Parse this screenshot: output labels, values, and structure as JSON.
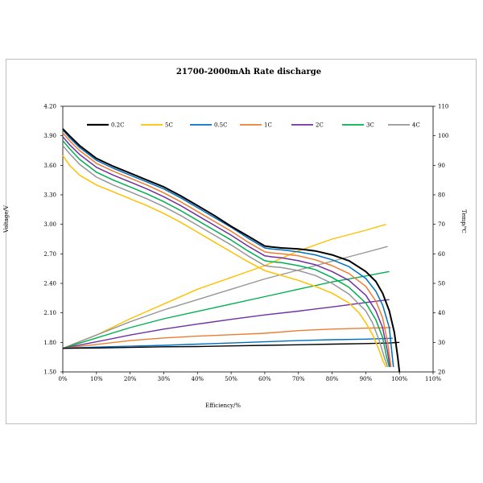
{
  "chart_data": {
    "type": "line",
    "title": "21700-2000mAh Rate discharge",
    "xlabel": "Efficiency/%",
    "ylabel_left": "Voltage/V",
    "ylabel_right": "Temp/℃",
    "xlim": [
      0,
      110
    ],
    "ylim_left": [
      1.5,
      4.2
    ],
    "ylim_right": [
      20,
      110
    ],
    "x_ticks": [
      "0%",
      "10%",
      "20%",
      "30%",
      "40%",
      "50%",
      "60%",
      "70%",
      "80%",
      "90%",
      "100%",
      "110%"
    ],
    "y_left_ticks": [
      "1.50",
      "1.80",
      "2.10",
      "2.40",
      "2.70",
      "3.00",
      "3.30",
      "3.60",
      "3.90",
      "4.20"
    ],
    "y_right_ticks": [
      "20",
      "30",
      "40",
      "50",
      "60",
      "70",
      "80",
      "90",
      "100",
      "110"
    ],
    "grid": false,
    "legend_position": "top",
    "legend": [
      {
        "label": "0.2C",
        "color": "#000000"
      },
      {
        "label": "5C",
        "color": "#ffc000"
      },
      {
        "label": "0.5C",
        "color": "#0070c0"
      },
      {
        "label": "1C",
        "color": "#ed7d31"
      },
      {
        "label": "2C",
        "color": "#7030a0"
      },
      {
        "label": "3C",
        "color": "#00b050"
      },
      {
        "label": "4C",
        "color": "#969696"
      }
    ],
    "voltage_series": [
      {
        "name": "0.2C",
        "color": "#000000",
        "x": [
          0,
          2,
          5,
          10,
          15,
          20,
          25,
          30,
          35,
          40,
          45,
          50,
          55,
          60,
          62,
          65,
          70,
          75,
          80,
          85,
          90,
          93,
          95,
          97,
          98.5,
          99.5,
          100
        ],
        "y": [
          3.97,
          3.9,
          3.8,
          3.67,
          3.59,
          3.52,
          3.45,
          3.38,
          3.29,
          3.19,
          3.09,
          2.98,
          2.88,
          2.78,
          2.77,
          2.76,
          2.75,
          2.73,
          2.69,
          2.63,
          2.52,
          2.42,
          2.3,
          2.12,
          1.9,
          1.65,
          1.5
        ]
      },
      {
        "name": "0.5C",
        "color": "#0070c0",
        "x": [
          0,
          2,
          5,
          10,
          15,
          20,
          25,
          30,
          35,
          40,
          45,
          50,
          55,
          60,
          62,
          65,
          70,
          75,
          80,
          85,
          90,
          93,
          95,
          97,
          98.2
        ],
        "y": [
          3.96,
          3.88,
          3.78,
          3.65,
          3.57,
          3.5,
          3.43,
          3.36,
          3.27,
          3.17,
          3.07,
          2.97,
          2.86,
          2.76,
          2.75,
          2.74,
          2.72,
          2.69,
          2.64,
          2.57,
          2.45,
          2.32,
          2.18,
          1.95,
          1.55
        ]
      },
      {
        "name": "1C",
        "color": "#ed7d31",
        "x": [
          0,
          2,
          5,
          10,
          15,
          20,
          25,
          30,
          35,
          40,
          45,
          50,
          55,
          60,
          62,
          65,
          70,
          75,
          80,
          85,
          90,
          93,
          95,
          96.5,
          97.5
        ],
        "y": [
          3.93,
          3.85,
          3.75,
          3.62,
          3.54,
          3.47,
          3.4,
          3.32,
          3.23,
          3.13,
          3.03,
          2.93,
          2.82,
          2.72,
          2.71,
          2.7,
          2.68,
          2.64,
          2.58,
          2.5,
          2.37,
          2.22,
          2.05,
          1.8,
          1.55
        ]
      },
      {
        "name": "2C",
        "color": "#7030a0",
        "x": [
          0,
          2,
          5,
          10,
          15,
          20,
          25,
          30,
          35,
          40,
          45,
          50,
          55,
          60,
          62,
          65,
          70,
          75,
          80,
          85,
          90,
          93,
          95,
          96.5,
          97.2
        ],
        "y": [
          3.89,
          3.81,
          3.71,
          3.58,
          3.5,
          3.43,
          3.36,
          3.28,
          3.19,
          3.09,
          2.99,
          2.89,
          2.78,
          2.68,
          2.67,
          2.66,
          2.63,
          2.59,
          2.52,
          2.43,
          2.28,
          2.12,
          1.95,
          1.7,
          1.55
        ]
      },
      {
        "name": "3C",
        "color": "#00b050",
        "x": [
          0,
          2,
          5,
          10,
          15,
          20,
          25,
          30,
          35,
          40,
          45,
          50,
          55,
          60,
          62,
          65,
          70,
          75,
          80,
          85,
          90,
          93,
          95,
          96.2,
          97
        ],
        "y": [
          3.85,
          3.77,
          3.66,
          3.53,
          3.45,
          3.38,
          3.31,
          3.23,
          3.14,
          3.04,
          2.94,
          2.84,
          2.73,
          2.63,
          2.62,
          2.61,
          2.58,
          2.54,
          2.46,
          2.36,
          2.2,
          2.03,
          1.85,
          1.65,
          1.55
        ]
      },
      {
        "name": "4C",
        "color": "#969696",
        "x": [
          0,
          2,
          5,
          10,
          15,
          20,
          25,
          30,
          35,
          40,
          45,
          50,
          55,
          60,
          62,
          65,
          70,
          75,
          80,
          85,
          90,
          92,
          94,
          95.5,
          96.5
        ],
        "y": [
          3.8,
          3.72,
          3.61,
          3.48,
          3.4,
          3.33,
          3.26,
          3.18,
          3.09,
          2.99,
          2.89,
          2.79,
          2.68,
          2.58,
          2.57,
          2.56,
          2.53,
          2.48,
          2.4,
          2.29,
          2.12,
          2.0,
          1.82,
          1.65,
          1.55
        ]
      },
      {
        "name": "5C",
        "color": "#ffc000",
        "x": [
          0,
          2,
          5,
          10,
          15,
          20,
          25,
          30,
          35,
          40,
          45,
          50,
          55,
          60,
          65,
          70,
          75,
          80,
          85,
          88,
          90,
          92,
          94,
          95,
          96
        ],
        "y": [
          3.7,
          3.6,
          3.5,
          3.4,
          3.33,
          3.26,
          3.19,
          3.11,
          3.02,
          2.92,
          2.82,
          2.72,
          2.62,
          2.53,
          2.48,
          2.43,
          2.37,
          2.3,
          2.2,
          2.1,
          2.0,
          1.88,
          1.72,
          1.62,
          1.55
        ]
      }
    ],
    "temperature_series": [
      {
        "name": "0.2C",
        "color": "#000000",
        "x": [
          0,
          10,
          20,
          30,
          40,
          50,
          60,
          70,
          80,
          90,
          97,
          100
        ],
        "y": [
          28.0,
          28.1,
          28.3,
          28.5,
          28.6,
          28.8,
          29.0,
          29.2,
          29.4,
          29.6,
          29.8,
          30.0
        ]
      },
      {
        "name": "0.5C",
        "color": "#0070c0",
        "x": [
          0,
          10,
          20,
          30,
          40,
          50,
          60,
          70,
          80,
          90,
          98
        ],
        "y": [
          28.0,
          28.4,
          28.7,
          29.0,
          29.4,
          29.8,
          30.2,
          30.6,
          30.9,
          31.1,
          31.4
        ]
      },
      {
        "name": "1C",
        "color": "#ed7d31",
        "x": [
          0,
          10,
          20,
          30,
          40,
          50,
          60,
          70,
          80,
          90,
          97.5
        ],
        "y": [
          28.0,
          29.3,
          30.6,
          31.5,
          32.1,
          32.6,
          33.1,
          34.0,
          34.5,
          34.8,
          35.0
        ]
      },
      {
        "name": "2C",
        "color": "#7030a0",
        "x": [
          0,
          10,
          20,
          30,
          40,
          50,
          60,
          70,
          80,
          90,
          97
        ],
        "y": [
          28.0,
          30.2,
          32.5,
          34.5,
          36.2,
          37.8,
          39.3,
          40.6,
          42.0,
          43.5,
          44.5
        ]
      },
      {
        "name": "3C",
        "color": "#00b050",
        "x": [
          0,
          10,
          20,
          30,
          40,
          50,
          60,
          70,
          80,
          90,
          97
        ],
        "y": [
          28.0,
          31.5,
          35.0,
          38.0,
          40.5,
          43.0,
          45.5,
          48.0,
          50.5,
          52.5,
          54.0
        ]
      },
      {
        "name": "4C",
        "color": "#969696",
        "x": [
          0,
          10,
          20,
          30,
          40,
          50,
          60,
          70,
          80,
          90,
          96.5
        ],
        "y": [
          28.0,
          32.5,
          37.0,
          41.0,
          44.5,
          48.0,
          51.5,
          54.5,
          57.5,
          60.5,
          62.5
        ]
      },
      {
        "name": "5C",
        "color": "#ffc000",
        "x": [
          0,
          10,
          20,
          30,
          40,
          50,
          60,
          70,
          80,
          90,
          96
        ],
        "y": [
          28.0,
          32.5,
          38.0,
          43.0,
          48.0,
          52.0,
          56.0,
          61.0,
          65.0,
          68.0,
          70.0
        ]
      }
    ]
  }
}
